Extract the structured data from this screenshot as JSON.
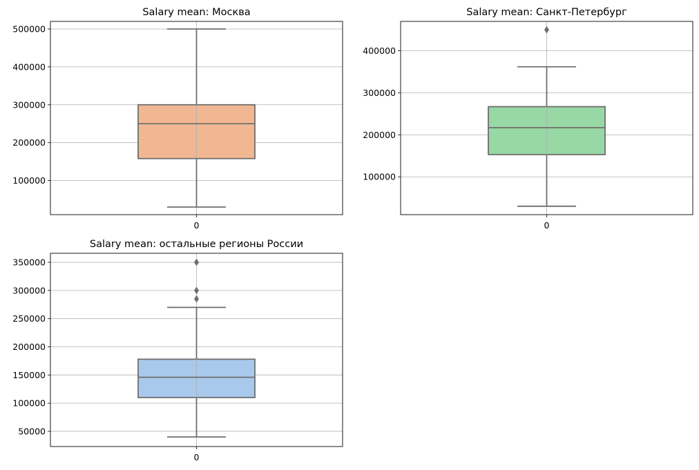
{
  "chart_data": [
    {
      "type": "box",
      "title": "Salary mean: Москва",
      "categories": [
        "0"
      ],
      "ylim": [
        10000,
        520000
      ],
      "yticks": [
        100000,
        200000,
        300000,
        400000,
        500000
      ],
      "ytick_labels": [
        "100000",
        "200000",
        "300000",
        "400000",
        "500000"
      ],
      "box": {
        "whisker_low": 30000,
        "q1": 158000,
        "median": 250000,
        "q3": 300000,
        "whisker_high": 500000,
        "outliers": []
      },
      "color": "#f1b793",
      "grid": true
    },
    {
      "type": "box",
      "title": "Salary mean: Санкт-Петербург",
      "categories": [
        "0"
      ],
      "ylim": [
        10000,
        470000
      ],
      "yticks": [
        100000,
        200000,
        300000,
        400000
      ],
      "ytick_labels": [
        "100000",
        "200000",
        "300000",
        "400000"
      ],
      "box": {
        "whisker_low": 30000,
        "q1": 153000,
        "median": 217000,
        "q3": 267000,
        "whisker_high": 362000,
        "outliers": [
          450000
        ]
      },
      "color": "#97d8a4",
      "grid": true
    },
    {
      "type": "box",
      "title": "Salary mean: остальные регионы России",
      "categories": [
        "0"
      ],
      "ylim": [
        23000,
        366000
      ],
      "yticks": [
        50000,
        100000,
        150000,
        200000,
        250000,
        300000,
        350000
      ],
      "ytick_labels": [
        "50000",
        "100000",
        "150000",
        "200000",
        "250000",
        "300000",
        "350000"
      ],
      "box": {
        "whisker_low": 40000,
        "q1": 110000,
        "median": 146000,
        "q3": 178000,
        "whisker_high": 270000,
        "outliers": [
          285000,
          300000,
          350000
        ]
      },
      "color": "#a9c9ec",
      "grid": true
    }
  ]
}
